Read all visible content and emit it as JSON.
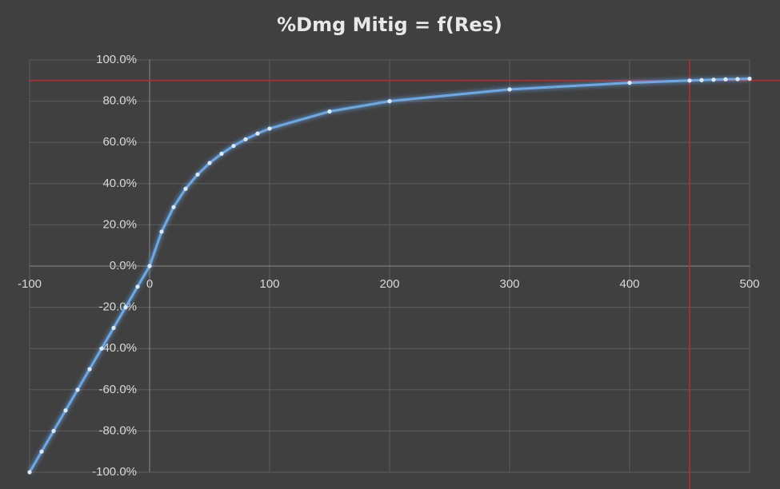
{
  "chart_data": {
    "type": "line",
    "title": "%Dmg Mitig = f(Res)",
    "x": [
      -100,
      -90,
      -80,
      -70,
      -60,
      -50,
      -40,
      -30,
      -20,
      -10,
      0,
      10,
      20,
      30,
      40,
      50,
      60,
      70,
      80,
      90,
      100,
      150,
      200,
      300,
      400,
      450,
      460,
      470,
      480,
      490,
      500
    ],
    "values": [
      -100,
      -90,
      -80,
      -70,
      -60,
      -50,
      -40,
      -30,
      -20,
      -10,
      0,
      16.7,
      28.6,
      37.5,
      44.4,
      50,
      54.5,
      58.3,
      61.5,
      64.3,
      66.7,
      75,
      80,
      85.7,
      88.9,
      90,
      90.2,
      90.4,
      90.6,
      90.7,
      90.9
    ],
    "color": "#6aa8e8",
    "xlim": [
      -100,
      500
    ],
    "xticks": [
      -100,
      0,
      100,
      200,
      300,
      400,
      500
    ],
    "ylim": [
      -100,
      100
    ],
    "yticks": [
      {
        "value": -100,
        "label": "-100.0%"
      },
      {
        "value": -80,
        "label": "-80.0%"
      },
      {
        "value": -60,
        "label": "-60.0%"
      },
      {
        "value": -40,
        "label": "-40.0%"
      },
      {
        "value": -20,
        "label": "-20.0%"
      },
      {
        "value": 0,
        "label": "0.0%"
      },
      {
        "value": 20,
        "label": "20.0%"
      },
      {
        "value": 40,
        "label": "40.0%"
      },
      {
        "value": 60,
        "label": "60.0%"
      },
      {
        "value": 80,
        "label": "80.0%"
      },
      {
        "value": 100,
        "label": "100.0%"
      }
    ],
    "grid": true,
    "reference_lines": {
      "y": 90,
      "x": 450,
      "color": "#c0282d"
    }
  }
}
